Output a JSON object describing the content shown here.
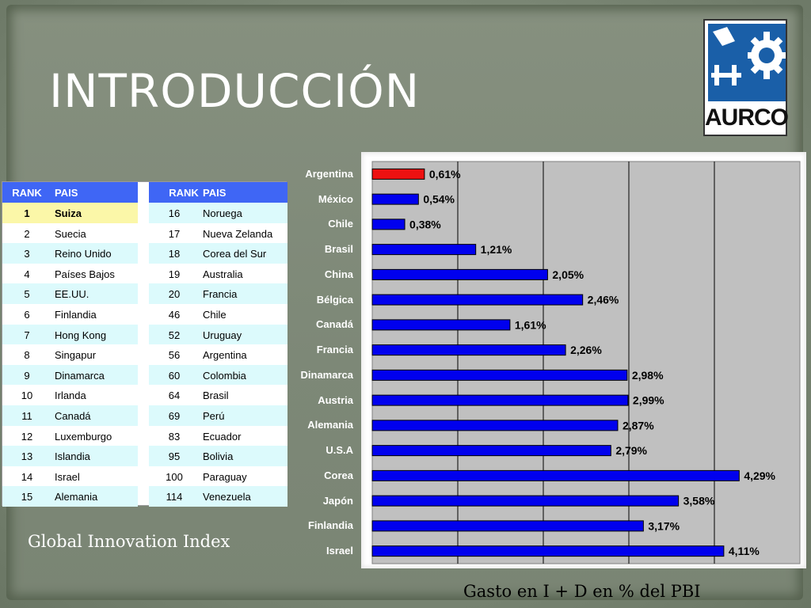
{
  "slide": {
    "title": "INTRODUCCIÓN",
    "logo_text": "AURCO",
    "logo_color": "#1a5fa8",
    "left_caption": "Global Innovation Index",
    "chart_caption": "Gasto en I + D en % del PBI"
  },
  "rank_table": {
    "headers": {
      "rank": "RANK",
      "pais": "PAIS"
    },
    "left": [
      {
        "rank": "1",
        "pais": "Suiza"
      },
      {
        "rank": "2",
        "pais": "Suecia"
      },
      {
        "rank": "3",
        "pais": "Reino Unido"
      },
      {
        "rank": "4",
        "pais": "Países Bajos"
      },
      {
        "rank": "5",
        "pais": "EE.UU."
      },
      {
        "rank": "6",
        "pais": "Finlandia"
      },
      {
        "rank": "7",
        "pais": "Hong Kong"
      },
      {
        "rank": "8",
        "pais": "Singapur"
      },
      {
        "rank": "9",
        "pais": "Dinamarca"
      },
      {
        "rank": "10",
        "pais": "Irlanda"
      },
      {
        "rank": "11",
        "pais": "Canadá"
      },
      {
        "rank": "12",
        "pais": "Luxemburgo"
      },
      {
        "rank": "13",
        "pais": "Islandia"
      },
      {
        "rank": "14",
        "pais": "Israel"
      },
      {
        "rank": "15",
        "pais": "Alemania"
      }
    ],
    "right": [
      {
        "rank": "16",
        "pais": "Noruega"
      },
      {
        "rank": "17",
        "pais": "Nueva Zelanda"
      },
      {
        "rank": "18",
        "pais": "Corea del Sur"
      },
      {
        "rank": "19",
        "pais": "Australia"
      },
      {
        "rank": "20",
        "pais": "Francia"
      },
      {
        "rank": "46",
        "pais": "Chile"
      },
      {
        "rank": "52",
        "pais": "Uruguay"
      },
      {
        "rank": "56",
        "pais": "Argentina"
      },
      {
        "rank": "60",
        "pais": "Colombia"
      },
      {
        "rank": "64",
        "pais": "Brasil"
      },
      {
        "rank": "69",
        "pais": "Perú"
      },
      {
        "rank": "83",
        "pais": "Ecuador"
      },
      {
        "rank": "95",
        "pais": "Bolivia"
      },
      {
        "rank": "100",
        "pais": "Paraguay"
      },
      {
        "rank": "114",
        "pais": "Venezuela"
      }
    ]
  },
  "chart_data": {
    "type": "bar",
    "orientation": "horizontal",
    "categories": [
      "Argentina",
      "México",
      "Chile",
      "Brasil",
      "China",
      "Bélgica",
      "Canadá",
      "Francia",
      "Dinamarca",
      "Austria",
      "Alemania",
      "U.S.A",
      "Corea",
      "Japón",
      "Finlandia",
      "Israel"
    ],
    "values": [
      0.61,
      0.54,
      0.38,
      1.21,
      2.05,
      2.46,
      1.61,
      2.26,
      2.98,
      2.99,
      2.87,
      2.79,
      4.29,
      3.58,
      3.17,
      4.11
    ],
    "value_labels": [
      "0,61%",
      "0,54%",
      "0,38%",
      "1,21%",
      "2,05%",
      "2,46%",
      "1,61%",
      "2,26%",
      "2,98%",
      "2,99%",
      "2,87%",
      "2,79%",
      "4,29%",
      "3,58%",
      "3,17%",
      "4,11%"
    ],
    "xlim": [
      0,
      5
    ],
    "grid": true,
    "colors": {
      "bar": "#0000ee",
      "highlight": "#ee1111",
      "plot_bg": "#c0c0c0"
    },
    "highlight_category": "Argentina"
  }
}
